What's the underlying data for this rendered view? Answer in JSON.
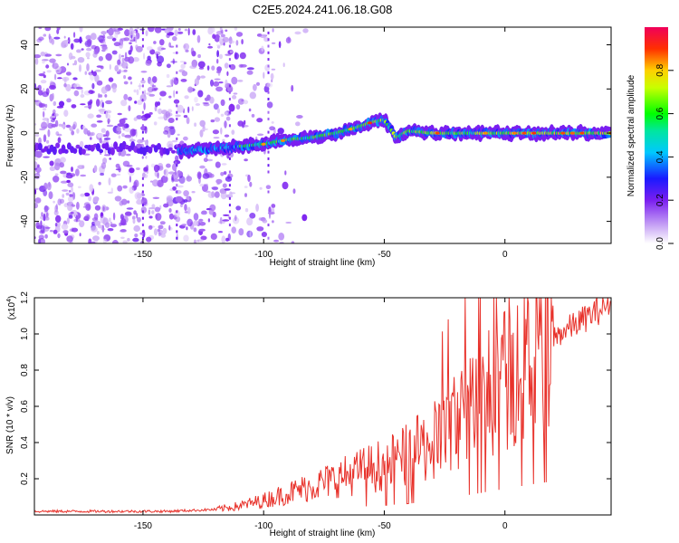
{
  "title": "C2E5.2024.241.06.18.G08",
  "chart_data": [
    {
      "type": "heatmap",
      "xlabel": "Height of straight line (km)",
      "ylabel": "Frequency (Hz)",
      "xlim": [
        -195,
        44
      ],
      "ylim": [
        -50,
        48
      ],
      "xticks": [
        -150,
        -100,
        -50,
        0
      ],
      "yticks": [
        -40,
        -20,
        0,
        20,
        40
      ],
      "colorbar": {
        "label": "Normalized spectral amplitude",
        "range": [
          0,
          1
        ],
        "ticks": [
          0.0,
          0.2,
          0.4,
          0.6,
          0.8
        ]
      },
      "ridge": {
        "x": [
          -135,
          -120,
          -110,
          -100,
          -90,
          -80,
          -70,
          -60,
          -55,
          -50,
          -45,
          -40,
          -30,
          -20,
          -10,
          0,
          10,
          20,
          30,
          40
        ],
        "y": [
          -8,
          -7,
          -6,
          -5,
          -3,
          -2,
          0,
          3,
          5,
          6,
          -2,
          1,
          0,
          0,
          0,
          0,
          0,
          0,
          0,
          0
        ]
      }
    },
    {
      "type": "line",
      "xlabel": "Height of straight line (km)",
      "ylabel": "SNR (10 * v/v)",
      "yscale_label": "(x10",
      "yscale_exp": "4",
      "xlim": [
        -195,
        44
      ],
      "ylim": [
        0,
        1.2
      ],
      "xticks": [
        -150,
        -100,
        -50,
        0
      ],
      "yticks": [
        0.2,
        0.4,
        0.6,
        0.8,
        1.0,
        1.2
      ],
      "series": [
        {
          "color": "#e8322b",
          "x": [
            -195,
            -180,
            -160,
            -140,
            -120,
            -110,
            -100,
            -90,
            -80,
            -70,
            -60,
            -50,
            -40,
            -30,
            -25,
            -20,
            -15,
            -10,
            -5,
            0,
            5,
            10,
            15,
            20,
            25,
            30,
            35,
            40,
            44
          ],
          "y": [
            0.02,
            0.02,
            0.02,
            0.02,
            0.03,
            0.05,
            0.08,
            0.12,
            0.16,
            0.2,
            0.24,
            0.28,
            0.33,
            0.4,
            0.46,
            0.52,
            0.58,
            0.64,
            0.7,
            0.76,
            0.82,
            0.88,
            0.93,
            0.98,
            1.02,
            1.06,
            1.1,
            1.14,
            1.18
          ]
        }
      ]
    }
  ]
}
